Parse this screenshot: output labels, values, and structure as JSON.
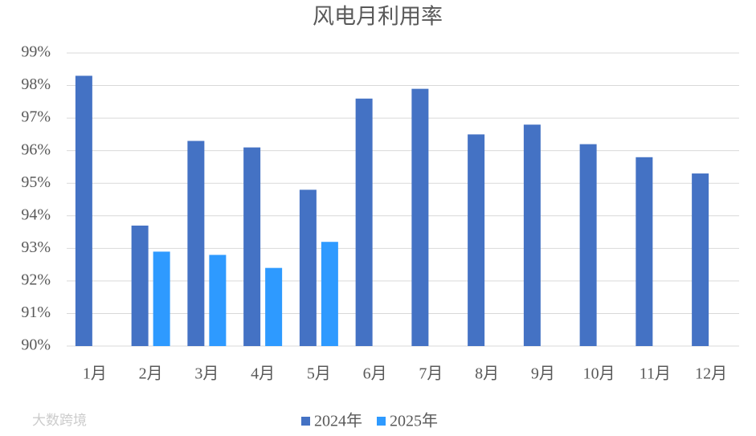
{
  "chart_data": {
    "type": "bar",
    "title": "风电月利用率",
    "categories": [
      "1月",
      "2月",
      "3月",
      "4月",
      "5月",
      "6月",
      "7月",
      "8月",
      "9月",
      "10月",
      "11月",
      "12月"
    ],
    "series": [
      {
        "name": "2024年",
        "color": "#4472c4",
        "values": [
          98.3,
          93.7,
          96.3,
          96.1,
          94.8,
          97.6,
          97.9,
          96.5,
          96.8,
          96.2,
          95.8,
          95.3
        ]
      },
      {
        "name": "2025年",
        "color": "#2e9aff",
        "values": [
          null,
          92.9,
          92.8,
          92.4,
          93.2,
          null,
          null,
          null,
          null,
          null,
          null,
          null
        ]
      }
    ],
    "ylim": [
      90,
      99
    ],
    "yticks": [
      {
        "value": 90,
        "label": "90%"
      },
      {
        "value": 91,
        "label": "91%"
      },
      {
        "value": 92,
        "label": "92%"
      },
      {
        "value": 93,
        "label": "93%"
      },
      {
        "value": 94,
        "label": "94%"
      },
      {
        "value": 95,
        "label": "95%"
      },
      {
        "value": 96,
        "label": "96%"
      },
      {
        "value": 97,
        "label": "97%"
      },
      {
        "value": 98,
        "label": "98%"
      },
      {
        "value": 99,
        "label": "99%"
      }
    ],
    "grid": true,
    "watermark": "大数跨境"
  }
}
